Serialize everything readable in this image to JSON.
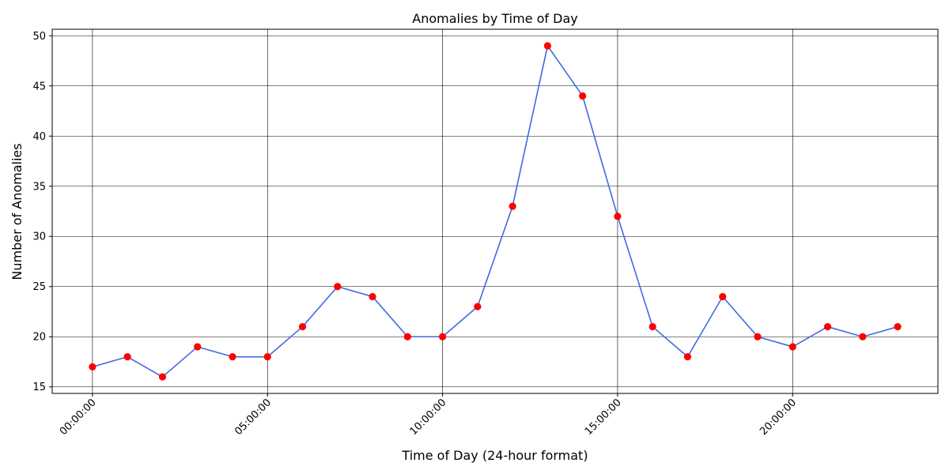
{
  "chart_data": {
    "type": "line",
    "title": "Anomalies by Time of Day",
    "xlabel": "Time of Day (24-hour format)",
    "ylabel": "Number of Anomalies",
    "x": [
      "00:00:00",
      "01:00:00",
      "02:00:00",
      "03:00:00",
      "04:00:00",
      "05:00:00",
      "06:00:00",
      "07:00:00",
      "08:00:00",
      "09:00:00",
      "10:00:00",
      "11:00:00",
      "12:00:00",
      "13:00:00",
      "14:00:00",
      "15:00:00",
      "16:00:00",
      "17:00:00",
      "18:00:00",
      "19:00:00",
      "20:00:00",
      "21:00:00",
      "22:00:00",
      "23:00:00"
    ],
    "x_ticks": [
      "00:00:00",
      "05:00:00",
      "10:00:00",
      "15:00:00",
      "20:00:00"
    ],
    "series": [
      {
        "values": [
          17,
          18,
          16,
          19,
          18,
          18,
          21,
          25,
          24,
          20,
          20,
          23,
          33,
          49,
          44,
          32,
          21,
          18,
          24,
          20,
          19,
          21,
          20,
          21
        ],
        "line_color": "#4169e1",
        "marker_color": "#ff0000"
      }
    ],
    "y_ticks": [
      15,
      20,
      25,
      30,
      35,
      40,
      45,
      50
    ],
    "ylim": [
      14.35,
      50.65
    ],
    "grid": true,
    "x_tick_rotation": 45
  }
}
